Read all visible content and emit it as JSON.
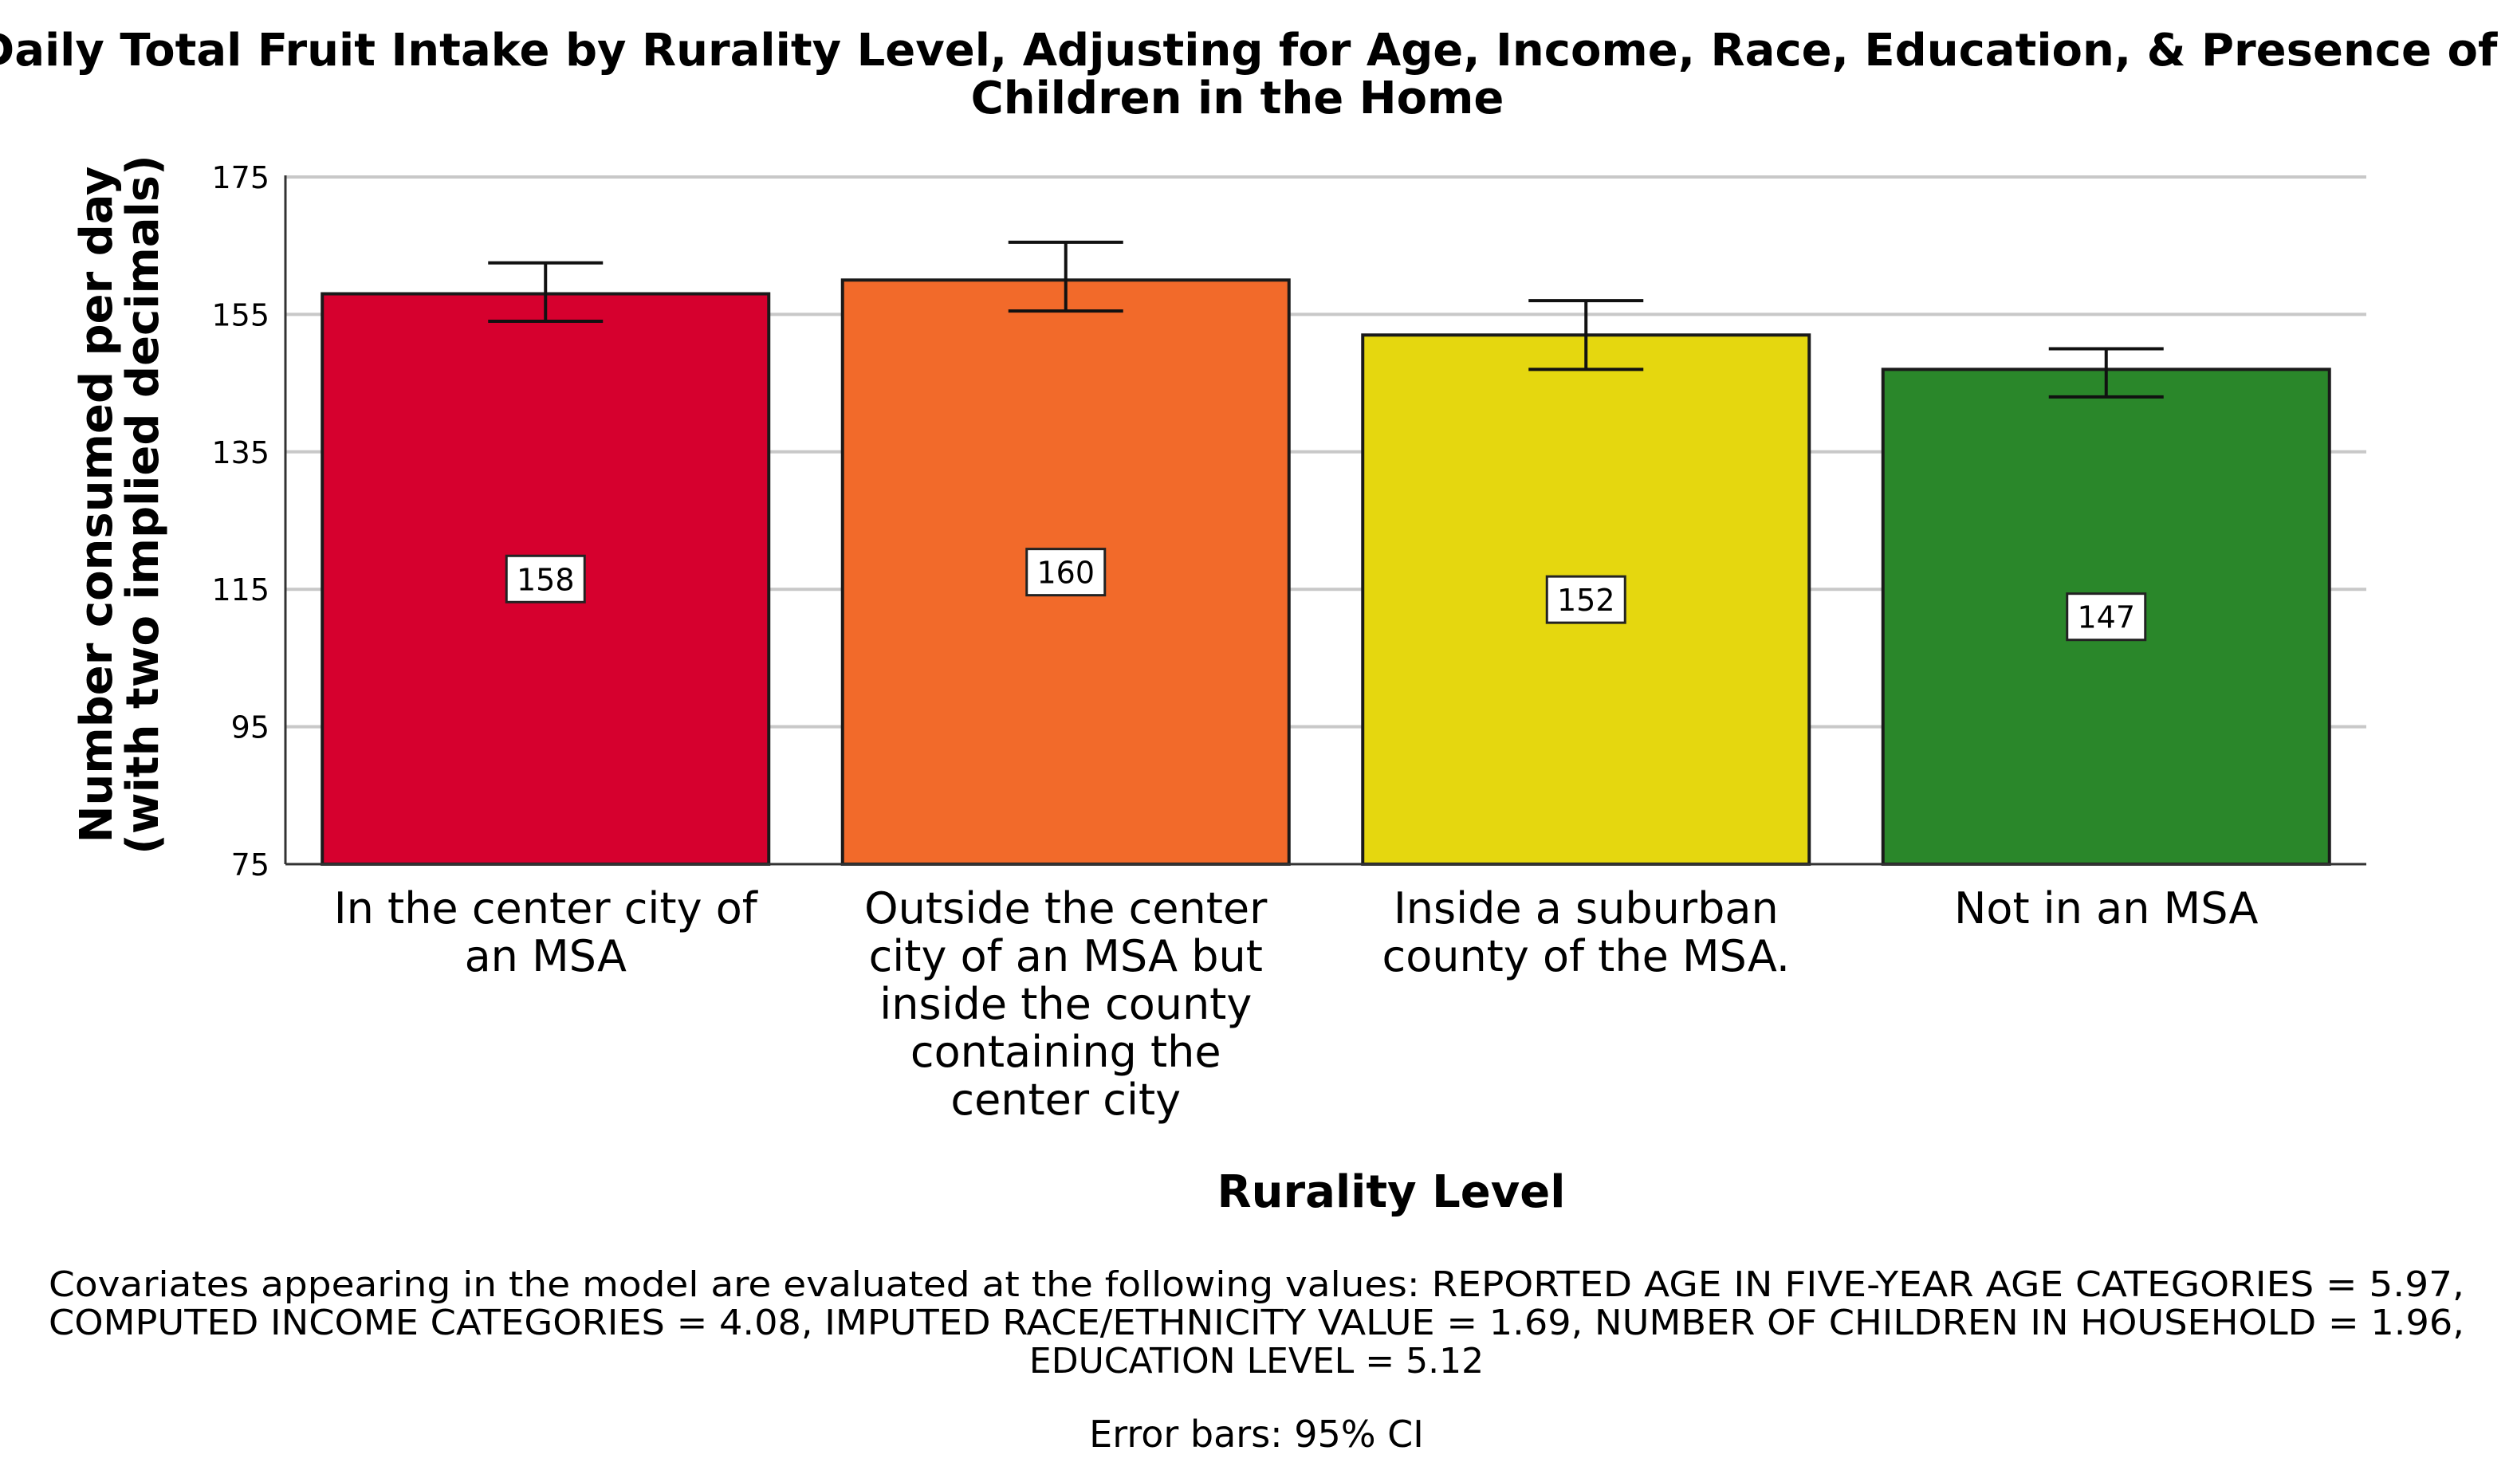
{
  "chart_data": {
    "type": "bar",
    "title_lines": [
      "Daily Total Fruit Intake by Rurality Level, Adjusting for Age, Income, Race, Education, & Presence of",
      "Children in the Home"
    ],
    "ylabel_lines": [
      "Number consumed per day",
      "(with two implied decimals)"
    ],
    "xlabel": "Rurality Level",
    "ylim": [
      75,
      175
    ],
    "yticks": [
      75,
      95,
      115,
      135,
      155,
      175
    ],
    "grid": true,
    "categories": [
      {
        "lines": [
          "In the center city of",
          "an MSA"
        ]
      },
      {
        "lines": [
          "Outside the center",
          "city of an MSA but",
          "inside the county",
          "containing the",
          "center city"
        ]
      },
      {
        "lines": [
          "Inside a suburban",
          "county of the MSA."
        ]
      },
      {
        "lines": [
          "Not in an MSA"
        ]
      }
    ],
    "values": [
      158,
      160,
      152,
      147
    ],
    "data_labels": [
      "158",
      "160",
      "152",
      "147"
    ],
    "ci_low": [
      154,
      155.5,
      147,
      143
    ],
    "ci_high": [
      162.5,
      165.5,
      157,
      150
    ],
    "colors": [
      "#d6002e",
      "#f26a2a",
      "#e5d70f",
      "#2a872a"
    ],
    "footnote_lines": [
      "Covariates appearing in the model are evaluated at the following values: REPORTED AGE IN FIVE-YEAR AGE CATEGORIES = 5.97,",
      "COMPUTED INCOME CATEGORIES = 4.08, IMPUTED RACE/ETHNICITY VALUE = 1.69, NUMBER OF CHILDREN IN HOUSEHOLD = 1.96,",
      "EDUCATION LEVEL = 5.12"
    ],
    "error_note": "Error bars: 95% CI"
  }
}
